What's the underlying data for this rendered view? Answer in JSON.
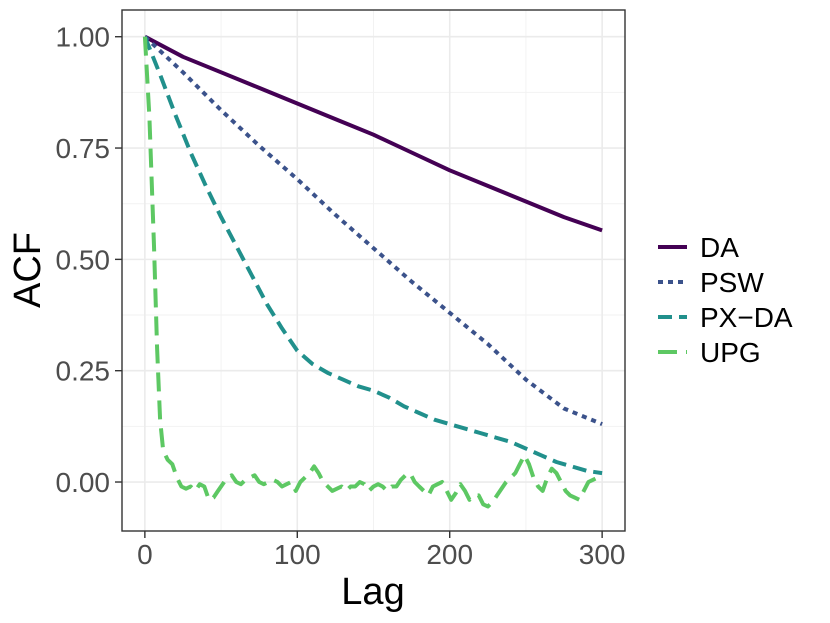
{
  "chart_data": {
    "type": "line",
    "title": "",
    "xlabel": "Lag",
    "ylabel": "ACF",
    "xlim": [
      -15,
      315
    ],
    "ylim": [
      -0.11,
      1.06
    ],
    "x_ticks": [
      0,
      100,
      200,
      300
    ],
    "x_tick_labels": [
      "0",
      "100",
      "200",
      "300"
    ],
    "y_ticks": [
      0.0,
      0.25,
      0.5,
      0.75,
      1.0
    ],
    "y_tick_labels": [
      "0.00",
      "0.25",
      "0.50",
      "0.75",
      "1.00"
    ],
    "grid": true,
    "legend_position": "right",
    "series": [
      {
        "name": "DA",
        "color": "#440154",
        "dash": "solid",
        "x": [
          0,
          25,
          50,
          75,
          100,
          125,
          150,
          175,
          200,
          225,
          250,
          275,
          300
        ],
        "y": [
          1.0,
          0.955,
          0.92,
          0.885,
          0.85,
          0.815,
          0.78,
          0.74,
          0.7,
          0.665,
          0.63,
          0.595,
          0.565
        ]
      },
      {
        "name": "PSW",
        "color": "#3B528B",
        "dash": "dotted",
        "x": [
          0,
          25,
          50,
          75,
          100,
          125,
          150,
          175,
          200,
          225,
          250,
          275,
          300
        ],
        "y": [
          1.0,
          0.92,
          0.835,
          0.755,
          0.68,
          0.6,
          0.525,
          0.45,
          0.38,
          0.31,
          0.23,
          0.165,
          0.13
        ]
      },
      {
        "name": "PX−DA",
        "color": "#21908C",
        "dash": "dashed",
        "x": [
          0,
          10,
          20,
          30,
          40,
          50,
          60,
          70,
          80,
          90,
          100,
          110,
          120,
          130,
          140,
          150,
          160,
          170,
          180,
          190,
          200,
          210,
          220,
          230,
          240,
          250,
          260,
          270,
          280,
          290,
          300
        ],
        "y": [
          1.0,
          0.915,
          0.825,
          0.74,
          0.665,
          0.595,
          0.53,
          0.465,
          0.4,
          0.345,
          0.295,
          0.265,
          0.245,
          0.23,
          0.215,
          0.205,
          0.19,
          0.17,
          0.155,
          0.14,
          0.13,
          0.12,
          0.11,
          0.1,
          0.09,
          0.075,
          0.06,
          0.045,
          0.035,
          0.025,
          0.02
        ]
      },
      {
        "name": "UPG",
        "color": "#5DC863",
        "dash": "longdash",
        "x": [
          0,
          3,
          6,
          8,
          10,
          12,
          15,
          18,
          21,
          24,
          27,
          30,
          33,
          36,
          39,
          42,
          45,
          48,
          51,
          54,
          57,
          60,
          63,
          66,
          69,
          72,
          75,
          78,
          81,
          84,
          87,
          90,
          93,
          96,
          99,
          102,
          105,
          108,
          111,
          114,
          117,
          120,
          123,
          126,
          129,
          132,
          135,
          138,
          141,
          144,
          147,
          150,
          153,
          156,
          159,
          162,
          165,
          168,
          171,
          174,
          177,
          180,
          183,
          186,
          189,
          192,
          195,
          198,
          201,
          204,
          207,
          210,
          213,
          216,
          219,
          222,
          225,
          228,
          231,
          234,
          237,
          240,
          243,
          246,
          249,
          252,
          255,
          258,
          261,
          264,
          267,
          270,
          273,
          276,
          279,
          282,
          285,
          288,
          291,
          294,
          297,
          300
        ],
        "y": [
          1.0,
          0.82,
          0.53,
          0.3,
          0.14,
          0.07,
          0.05,
          0.04,
          0.01,
          -0.01,
          -0.015,
          -0.01,
          -0.02,
          -0.005,
          -0.01,
          -0.04,
          -0.035,
          -0.02,
          -0.005,
          0.01,
          0.015,
          0.0,
          -0.005,
          0.005,
          0.01,
          0.015,
          0.0,
          -0.005,
          0.0,
          0.005,
          0.0,
          -0.01,
          -0.005,
          0.0,
          -0.02,
          0.0,
          0.01,
          0.02,
          0.035,
          0.02,
          0.0,
          -0.01,
          -0.02,
          -0.015,
          -0.01,
          -0.02,
          -0.01,
          -0.01,
          0.0,
          -0.005,
          -0.02,
          -0.01,
          -0.005,
          -0.01,
          -0.02,
          -0.01,
          -0.01,
          0.005,
          0.015,
          0.02,
          0.0,
          -0.01,
          -0.02,
          -0.03,
          -0.01,
          -0.005,
          0.0,
          -0.02,
          -0.04,
          -0.025,
          -0.005,
          -0.02,
          -0.04,
          -0.03,
          -0.03,
          -0.05,
          -0.055,
          -0.045,
          -0.03,
          -0.015,
          0.0,
          0.01,
          0.02,
          0.04,
          0.06,
          0.04,
          0.01,
          -0.01,
          -0.02,
          0.01,
          0.03,
          0.02,
          0.0,
          -0.02,
          -0.03,
          -0.035,
          -0.04,
          -0.02,
          0.0,
          0.005,
          0.01,
          0.0
        ]
      }
    ]
  }
}
